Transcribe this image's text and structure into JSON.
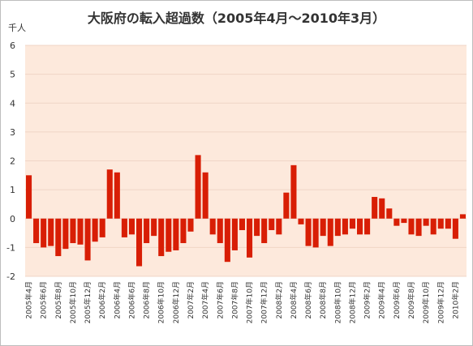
{
  "chart_data": {
    "type": "bar",
    "title": "大阪府の転入超過数（2005年4月～2010年3月）",
    "y_unit": "千人",
    "ylim": [
      -2,
      6
    ],
    "y_ticks": [
      "6",
      "5",
      "4",
      "3",
      "2",
      "1",
      "0",
      "-1",
      "-2"
    ],
    "grid": true,
    "plot_background": "#fde9dc",
    "bar_color": "#d81e05",
    "categories": [
      "2005年4月",
      "2005年5月",
      "2005年6月",
      "2005年7月",
      "2005年8月",
      "2005年9月",
      "2005年10月",
      "2005年11月",
      "2005年12月",
      "2006年1月",
      "2006年2月",
      "2006年3月",
      "2006年4月",
      "2006年5月",
      "2006年6月",
      "2006年7月",
      "2006年8月",
      "2006年9月",
      "2006年10月",
      "2006年11月",
      "2006年12月",
      "2007年1月",
      "2007年2月",
      "2007年3月",
      "2007年4月",
      "2007年5月",
      "2007年6月",
      "2007年7月",
      "2007年8月",
      "2007年9月",
      "2007年10月",
      "2007年11月",
      "2007年12月",
      "2008年1月",
      "2008年2月",
      "2008年3月",
      "2008年4月",
      "2008年5月",
      "2008年6月",
      "2008年7月",
      "2008年8月",
      "2008年9月",
      "2008年10月",
      "2008年11月",
      "2008年12月",
      "2009年1月",
      "2009年2月",
      "2009年3月",
      "2009年4月",
      "2009年5月",
      "2009年6月",
      "2009年7月",
      "2009年8月",
      "2009年9月",
      "2009年10月",
      "2009年11月",
      "2009年12月",
      "2010年1月",
      "2010年2月",
      "2010年3月"
    ],
    "visible_x_labels": [
      "2005年4月",
      "2005年6月",
      "2005年8月",
      "2005年10月",
      "2005年12月",
      "2006年2月",
      "2006年4月",
      "2006年6月",
      "2006年8月",
      "2006年10月",
      "2006年12月",
      "2007年2月",
      "2007年4月",
      "2007年6月",
      "2007年8月",
      "2007年10月",
      "2007年12月",
      "2008年2月",
      "2008年4月",
      "2008年6月",
      "2008年8月",
      "2008年10月",
      "2008年12月",
      "2009年2月",
      "2009年4月",
      "2009年6月",
      "2009年8月",
      "2009年10月",
      "2009年12月",
      "2010年2月"
    ],
    "values": [
      1.5,
      -0.85,
      -1.0,
      -0.95,
      -1.3,
      -1.05,
      -0.85,
      -0.9,
      -1.45,
      -0.8,
      -0.65,
      1.7,
      1.6,
      -0.65,
      -0.55,
      -1.65,
      -0.85,
      -0.6,
      -1.3,
      -1.15,
      -1.1,
      -0.85,
      -0.45,
      2.2,
      1.6,
      -0.55,
      -0.85,
      -1.5,
      -1.1,
      -0.4,
      -1.35,
      -0.6,
      -0.85,
      -0.4,
      -0.55,
      0.9,
      1.85,
      -0.2,
      -0.95,
      -1.0,
      -0.6,
      -0.95,
      -0.6,
      -0.55,
      -0.35,
      -0.55,
      -0.55,
      0.75,
      0.7,
      0.35,
      -0.25,
      -0.15,
      -0.55,
      -0.6,
      -0.25,
      -0.55,
      -0.35,
      -0.35,
      -0.7,
      0.15
    ]
  }
}
